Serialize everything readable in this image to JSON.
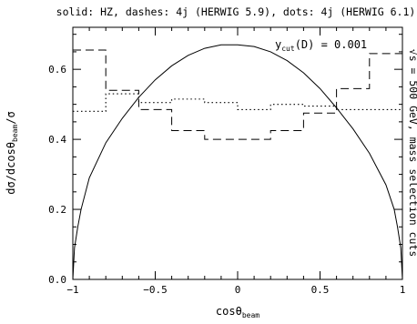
{
  "chart_data": {
    "type": "line",
    "title": "solid: HZ, dashes: 4j (HERWIG 5.9), dots: 4j (HERWIG 6.1)",
    "xlabel": {
      "main": "cosθ",
      "sub": "beam"
    },
    "ylabel": {
      "main": "dσ/dcosθ",
      "sub": "beam",
      "tail": "/σ"
    },
    "right_label": "√s = 500 GeV, mass selection cuts",
    "annotation": {
      "main": "y",
      "sub": "cut",
      "tail": "(D) = 0.001"
    },
    "xlim": [
      -1,
      1
    ],
    "ylim": [
      0,
      0.72
    ],
    "xticks": [
      -1,
      -0.5,
      0,
      0.5,
      1
    ],
    "xtick_labels": [
      "−1",
      "−0.5",
      "0",
      "0.5",
      "1"
    ],
    "yticks": [
      0,
      0.2,
      0.4,
      0.6
    ],
    "ytick_labels": [
      "0.0",
      "0.2",
      "0.4",
      "0.6"
    ],
    "series": [
      {
        "name": "HZ",
        "style": "solid",
        "x": [
          -1,
          -0.99,
          -0.97,
          -0.95,
          -0.9,
          -0.8,
          -0.7,
          -0.6,
          -0.5,
          -0.4,
          -0.3,
          -0.2,
          -0.1,
          0,
          0.1,
          0.2,
          0.3,
          0.4,
          0.5,
          0.6,
          0.7,
          0.8,
          0.9,
          0.95,
          0.97,
          0.99,
          1
        ],
        "y": [
          0,
          0.09,
          0.15,
          0.2,
          0.29,
          0.39,
          0.46,
          0.52,
          0.57,
          0.61,
          0.64,
          0.66,
          0.67,
          0.67,
          0.665,
          0.65,
          0.625,
          0.59,
          0.545,
          0.49,
          0.43,
          0.36,
          0.27,
          0.2,
          0.15,
          0.09,
          0
        ]
      },
      {
        "name": "4j (HERWIG 5.9)",
        "style": "dashed",
        "bin_edges": [
          -1,
          -0.8,
          -0.6,
          -0.4,
          -0.2,
          0,
          0.2,
          0.4,
          0.6,
          0.8,
          1
        ],
        "values": [
          0.655,
          0.54,
          0.485,
          0.425,
          0.4,
          0.4,
          0.425,
          0.475,
          0.545,
          0.645
        ]
      },
      {
        "name": "4j (HERWIG 6.1)",
        "style": "dotted",
        "bin_edges": [
          -1,
          -0.8,
          -0.6,
          -0.4,
          -0.2,
          0,
          0.2,
          0.4,
          0.6,
          0.8,
          1
        ],
        "values": [
          0.48,
          0.53,
          0.505,
          0.515,
          0.505,
          0.485,
          0.5,
          0.495,
          0.485,
          0.485
        ]
      }
    ]
  }
}
